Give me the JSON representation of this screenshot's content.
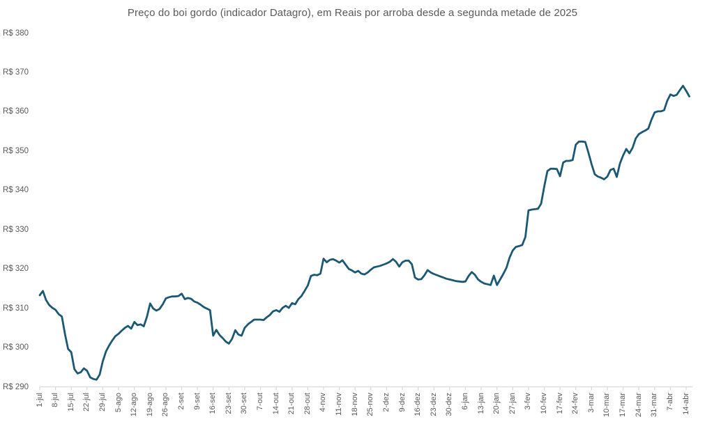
{
  "chart": {
    "title": "Preço do boi gordo (indicador Datagro), em Reais por arroba desde a segunda metade de 2025",
    "y_axis": {
      "labels": [
        "R$ 380",
        "R$ 370",
        "R$ 360",
        "R$ 350",
        "R$ 340",
        "R$ 330",
        "R$ 320",
        "R$ 310",
        "R$ 300",
        "R$ 290"
      ],
      "min": 290,
      "max": 380,
      "step": 10,
      "prefix": "R$"
    },
    "colors": {
      "line": "#1b5874",
      "axis": "#d9d9d9",
      "text": "#595959",
      "background": "#ffffff"
    }
  },
  "chart_data": {
    "type": "line",
    "title": "Preço do boi gordo (indicador Datagro), em Reais por arroba desde a segunda metade de 2025",
    "ylim": [
      290,
      380
    ],
    "grid": "none",
    "legend": "none",
    "x_tick_labels": [
      "1-jul",
      "8-jul",
      "15-jul",
      "22-jul",
      "29-jul",
      "5-ago",
      "12-ago",
      "19-ago",
      "26-ago",
      "2-set",
      "9-set",
      "16-set",
      "23-set",
      "30-set",
      "7-out",
      "14-out",
      "21-out",
      "28-out",
      "4-nov",
      "11-nov",
      "18-nov",
      "25-nov",
      "2-dez",
      "9-dez",
      "16-dez",
      "23-dez",
      "30-dez",
      "6-jan",
      "13-jan",
      "20-jan",
      "27-jan",
      "3-fev",
      "10-fev",
      "17-fev",
      "24-fev",
      "3-mar",
      "10-mar",
      "17-mar",
      "24-mar",
      "31-mar",
      "7-abr",
      "14-abr"
    ],
    "points_per_tick": 5,
    "values": [
      313.3,
      314.4,
      312.1,
      310.8,
      310.1,
      309.6,
      308.5,
      307.9,
      303.4,
      299.6,
      298.8,
      294.5,
      293.4,
      293.7,
      294.7,
      294.1,
      292.4,
      292.0,
      291.8,
      293.1,
      296.5,
      299.0,
      300.5,
      301.8,
      302.9,
      303.5,
      304.3,
      305.0,
      305.5,
      304.8,
      306.5,
      305.7,
      305.9,
      305.4,
      307.8,
      311.2,
      309.9,
      309.4,
      309.8,
      311.0,
      312.5,
      312.8,
      313.0,
      313.0,
      313.1,
      313.7,
      312.3,
      312.6,
      312.4,
      311.7,
      311.4,
      310.9,
      310.3,
      309.9,
      309.5,
      303.0,
      304.5,
      303.2,
      302.4,
      301.5,
      301.0,
      302.2,
      304.4,
      303.3,
      303.0,
      305.0,
      305.9,
      306.5,
      307.1,
      307.1,
      307.1,
      307.0,
      307.7,
      308.3,
      309.2,
      309.5,
      309.1,
      310.1,
      310.6,
      310.1,
      311.3,
      311.0,
      312.3,
      313.1,
      314.4,
      315.8,
      318.2,
      318.5,
      318.4,
      318.8,
      322.6,
      321.7,
      322.3,
      322.5,
      322.1,
      321.6,
      322.2,
      321.1,
      320.0,
      319.6,
      319.1,
      319.5,
      318.8,
      318.6,
      319.1,
      319.8,
      320.4,
      320.6,
      320.8,
      321.1,
      321.4,
      321.8,
      322.5,
      321.8,
      320.6,
      321.7,
      322.1,
      322.1,
      321.2,
      317.8,
      317.3,
      317.4,
      318.4,
      319.7,
      319.1,
      318.7,
      318.4,
      318.1,
      317.8,
      317.5,
      317.3,
      317.1,
      316.9,
      316.8,
      316.7,
      316.8,
      318.2,
      319.2,
      318.5,
      317.3,
      316.7,
      316.3,
      316.1,
      315.9,
      318.3,
      315.9,
      317.3,
      318.7,
      320.3,
      322.9,
      324.7,
      325.6,
      325.8,
      326.1,
      328.1,
      334.9,
      335.1,
      335.2,
      335.3,
      336.6,
      341.0,
      344.9,
      345.5,
      345.5,
      345.4,
      343.6,
      347.1,
      347.5,
      347.5,
      347.7,
      351.6,
      352.4,
      352.4,
      352.3,
      349.6,
      346.6,
      344.1,
      343.5,
      343.2,
      342.8,
      343.5,
      345.2,
      345.5,
      343.4,
      346.8,
      348.9,
      350.5,
      349.4,
      350.8,
      353.2,
      354.3,
      354.8,
      355.2,
      355.7,
      358.0,
      359.8,
      360.1,
      360.1,
      360.4,
      362.8,
      364.4,
      364.0,
      364.3,
      365.5,
      366.6,
      365.3,
      363.9
    ]
  }
}
